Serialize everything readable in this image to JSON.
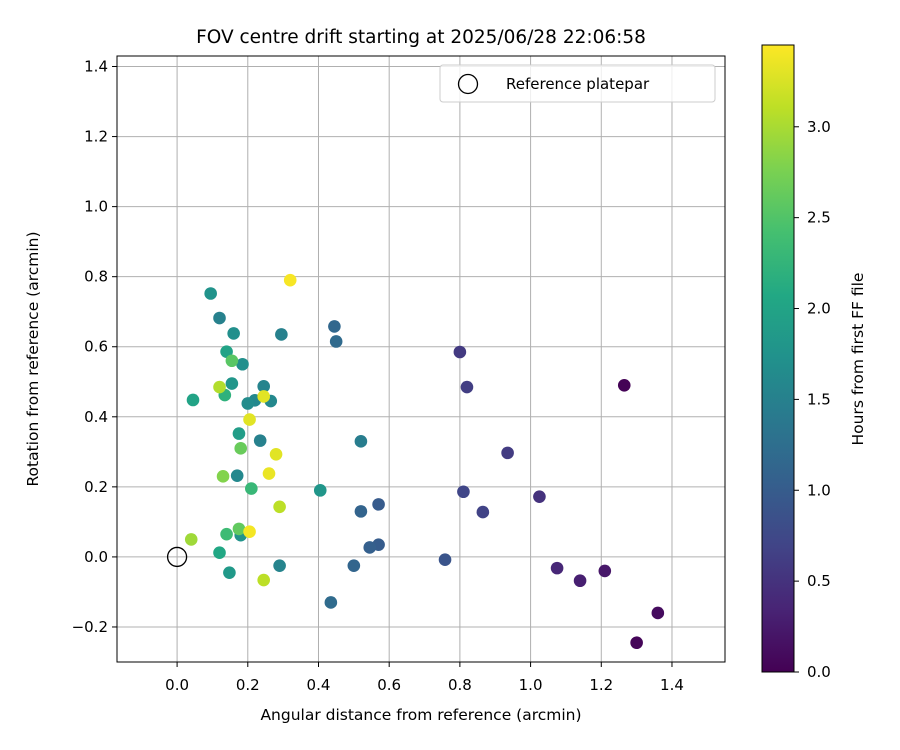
{
  "chart_data": {
    "type": "scatter",
    "title": "FOV centre drift starting at 2025/06/28 22:06:58",
    "xlabel": "Angular distance from reference (arcmin)",
    "ylabel": "Rotation from reference (arcmin)",
    "xlim": [
      -0.17,
      1.55
    ],
    "ylim": [
      -0.3,
      1.43
    ],
    "xticks": [
      0.0,
      0.2,
      0.4,
      0.6,
      0.8,
      1.0,
      1.2,
      1.4
    ],
    "xtick_labels": [
      "0.0",
      "0.2",
      "0.4",
      "0.6",
      "0.8",
      "1.0",
      "1.2",
      "1.4"
    ],
    "yticks": [
      -0.2,
      0.0,
      0.2,
      0.4,
      0.6,
      0.8,
      1.0,
      1.2,
      1.4
    ],
    "ytick_labels": [
      "−0.2",
      "0.0",
      "0.2",
      "0.4",
      "0.6",
      "0.8",
      "1.0",
      "1.2",
      "1.4"
    ],
    "grid": true,
    "legend": {
      "location": "upper right",
      "entries": [
        "Reference platepar"
      ]
    },
    "reference_point": {
      "x": 0.0,
      "y": 0.0,
      "label": "Reference platepar"
    },
    "colorbar": {
      "label": "Hours from first FF file",
      "colormap": "viridis",
      "range": [
        0.0,
        3.45
      ],
      "ticks": [
        0.0,
        0.5,
        1.0,
        1.5,
        2.0,
        2.5,
        3.0
      ],
      "tick_labels": [
        "0.0",
        "0.5",
        "1.0",
        "1.5",
        "2.0",
        "2.5",
        "3.0"
      ]
    },
    "points": [
      {
        "x": 1.265,
        "y": 0.49,
        "hours": 0.02
      },
      {
        "x": 1.3,
        "y": -0.245,
        "hours": 0.05
      },
      {
        "x": 1.36,
        "y": -0.16,
        "hours": 0.1
      },
      {
        "x": 1.21,
        "y": -0.04,
        "hours": 0.22
      },
      {
        "x": 1.14,
        "y": -0.068,
        "hours": 0.3
      },
      {
        "x": 1.075,
        "y": -0.032,
        "hours": 0.38
      },
      {
        "x": 1.025,
        "y": 0.172,
        "hours": 0.5
      },
      {
        "x": 0.935,
        "y": 0.297,
        "hours": 0.6
      },
      {
        "x": 0.865,
        "y": 0.128,
        "hours": 0.68
      },
      {
        "x": 0.82,
        "y": 0.485,
        "hours": 0.62
      },
      {
        "x": 0.81,
        "y": 0.186,
        "hours": 0.72
      },
      {
        "x": 0.8,
        "y": 0.585,
        "hours": 0.58
      },
      {
        "x": 0.758,
        "y": -0.008,
        "hours": 0.9
      },
      {
        "x": 0.57,
        "y": 0.035,
        "hours": 1.0
      },
      {
        "x": 0.57,
        "y": 0.15,
        "hours": 0.98
      },
      {
        "x": 0.545,
        "y": 0.027,
        "hours": 1.05
      },
      {
        "x": 0.52,
        "y": 0.13,
        "hours": 1.1
      },
      {
        "x": 0.52,
        "y": 0.33,
        "hours": 1.45
      },
      {
        "x": 0.5,
        "y": -0.025,
        "hours": 1.12
      },
      {
        "x": 0.45,
        "y": 0.615,
        "hours": 1.18
      },
      {
        "x": 0.445,
        "y": 0.658,
        "hours": 1.15
      },
      {
        "x": 0.435,
        "y": -0.13,
        "hours": 1.2
      },
      {
        "x": 0.405,
        "y": 0.19,
        "hours": 1.8
      },
      {
        "x": 0.295,
        "y": 0.635,
        "hours": 1.5
      },
      {
        "x": 0.29,
        "y": -0.025,
        "hours": 1.55
      },
      {
        "x": 0.265,
        "y": 0.445,
        "hours": 1.6
      },
      {
        "x": 0.245,
        "y": 0.487,
        "hours": 1.55
      },
      {
        "x": 0.235,
        "y": 0.332,
        "hours": 1.5
      },
      {
        "x": 0.22,
        "y": 0.447,
        "hours": 1.6
      },
      {
        "x": 0.2,
        "y": 0.438,
        "hours": 1.65
      },
      {
        "x": 0.185,
        "y": 0.55,
        "hours": 1.7
      },
      {
        "x": 0.18,
        "y": 0.062,
        "hours": 1.75
      },
      {
        "x": 0.175,
        "y": 0.352,
        "hours": 1.9
      },
      {
        "x": 0.17,
        "y": 0.232,
        "hours": 1.6
      },
      {
        "x": 0.16,
        "y": 0.638,
        "hours": 1.7
      },
      {
        "x": 0.155,
        "y": 0.495,
        "hours": 1.8
      },
      {
        "x": 0.148,
        "y": -0.045,
        "hours": 1.85
      },
      {
        "x": 0.14,
        "y": 0.586,
        "hours": 2.0
      },
      {
        "x": 0.135,
        "y": 0.462,
        "hours": 2.2
      },
      {
        "x": 0.12,
        "y": 0.682,
        "hours": 1.5
      },
      {
        "x": 0.12,
        "y": 0.012,
        "hours": 2.05
      },
      {
        "x": 0.095,
        "y": 0.752,
        "hours": 1.75
      },
      {
        "x": 0.045,
        "y": 0.448,
        "hours": 2.0
      },
      {
        "x": 0.21,
        "y": 0.195,
        "hours": 2.3
      },
      {
        "x": 0.155,
        "y": 0.56,
        "hours": 2.55
      },
      {
        "x": 0.14,
        "y": 0.065,
        "hours": 2.35
      },
      {
        "x": 0.175,
        "y": 0.08,
        "hours": 2.6
      },
      {
        "x": 0.18,
        "y": 0.31,
        "hours": 2.65
      },
      {
        "x": 0.13,
        "y": 0.23,
        "hours": 2.8
      },
      {
        "x": 0.04,
        "y": 0.05,
        "hours": 2.95
      },
      {
        "x": 0.12,
        "y": 0.485,
        "hours": 3.05
      },
      {
        "x": 0.245,
        "y": -0.066,
        "hours": 3.1
      },
      {
        "x": 0.29,
        "y": 0.143,
        "hours": 3.1
      },
      {
        "x": 0.205,
        "y": 0.072,
        "hours": 3.4
      },
      {
        "x": 0.205,
        "y": 0.392,
        "hours": 3.3
      },
      {
        "x": 0.245,
        "y": 0.458,
        "hours": 3.3
      },
      {
        "x": 0.26,
        "y": 0.238,
        "hours": 3.35
      },
      {
        "x": 0.28,
        "y": 0.293,
        "hours": 3.3
      },
      {
        "x": 0.32,
        "y": 0.79,
        "hours": 3.42
      }
    ]
  }
}
